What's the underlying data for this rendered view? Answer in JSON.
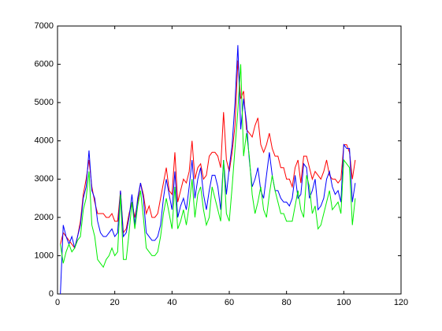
{
  "chart_data": {
    "type": "line",
    "x": [
      1,
      2,
      3,
      4,
      5,
      6,
      7,
      8,
      9,
      10,
      11,
      12,
      13,
      14,
      15,
      16,
      17,
      18,
      19,
      20,
      21,
      22,
      23,
      24,
      25,
      26,
      27,
      28,
      29,
      30,
      31,
      32,
      33,
      34,
      35,
      36,
      37,
      38,
      39,
      40,
      41,
      42,
      43,
      44,
      45,
      46,
      47,
      48,
      49,
      50,
      51,
      52,
      53,
      54,
      55,
      56,
      57,
      58,
      59,
      60,
      61,
      62,
      63,
      64,
      65,
      66,
      67,
      68,
      69,
      70,
      71,
      72,
      73,
      74,
      75,
      76,
      77,
      78,
      79,
      80,
      81,
      82,
      83,
      84,
      85,
      86,
      87,
      88,
      89,
      90,
      91,
      92,
      93,
      94,
      95,
      96,
      97,
      98,
      99,
      100,
      101,
      102,
      103,
      104
    ],
    "series": [
      {
        "color": "#ff0000",
        "values": [
          1300,
          1600,
          1500,
          1400,
          1300,
          1200,
          1500,
          1900,
          2600,
          3000,
          3500,
          2800,
          2400,
          2100,
          2100,
          2100,
          2000,
          2000,
          2100,
          1900,
          1900,
          2700,
          1600,
          1700,
          2100,
          2400,
          2000,
          2400,
          2900,
          2600,
          2100,
          2300,
          2000,
          2000,
          2100,
          2500,
          2900,
          3300,
          2700,
          2600,
          3700,
          2400,
          2700,
          3000,
          2900,
          3200,
          4000,
          3000,
          3300,
          3400,
          3000,
          3100,
          3600,
          3700,
          3700,
          3600,
          3300,
          4750,
          3500,
          3200,
          3700,
          4400,
          6100,
          5100,
          5300,
          4300,
          4200,
          4100,
          4400,
          4600,
          3900,
          3700,
          3900,
          4200,
          3800,
          3600,
          3600,
          3300,
          3300,
          3000,
          3000,
          2800,
          3300,
          3500,
          2900,
          3600,
          3600,
          3300,
          3000,
          3200,
          3100,
          3000,
          3200,
          3500,
          3100,
          3000,
          3000,
          2900,
          3000,
          3900,
          3900,
          3700,
          3000,
          3500
        ]
      },
      {
        "color": "#0000ff",
        "values": [
          0,
          1800,
          1500,
          1300,
          1500,
          1200,
          1500,
          1800,
          2500,
          2800,
          3750,
          2700,
          2500,
          1900,
          1600,
          1500,
          1500,
          1600,
          1700,
          1500,
          1600,
          2700,
          1500,
          1600,
          2000,
          2600,
          1800,
          2500,
          2900,
          2500,
          1600,
          1500,
          1400,
          1400,
          1500,
          1800,
          2500,
          3000,
          2600,
          2200,
          3200,
          2000,
          2300,
          2500,
          2200,
          2800,
          3500,
          2500,
          3000,
          3300,
          2600,
          2200,
          2700,
          3100,
          3100,
          2800,
          2200,
          3500,
          2600,
          3300,
          3900,
          5000,
          6500,
          4300,
          5100,
          4500,
          3500,
          2800,
          3000,
          3300,
          2700,
          2500,
          3100,
          3700,
          3100,
          2700,
          2700,
          2500,
          2400,
          2400,
          2300,
          2500,
          3100,
          2500,
          2600,
          3400,
          3300,
          2500,
          2700,
          3000,
          2200,
          2300,
          2500,
          3000,
          3200,
          2800,
          2600,
          2700,
          2400,
          3900,
          3800,
          3800,
          2400,
          2900
        ]
      },
      {
        "color": "#00ee00",
        "values": [
          1300,
          800,
          1100,
          1300,
          1100,
          1200,
          1400,
          1500,
          2200,
          2500,
          3200,
          1800,
          1500,
          900,
          800,
          700,
          900,
          1000,
          1200,
          1000,
          1100,
          2600,
          900,
          900,
          1600,
          2400,
          1700,
          2300,
          2700,
          2000,
          1200,
          1100,
          1000,
          1000,
          1100,
          1500,
          2100,
          2500,
          2100,
          1700,
          2800,
          1700,
          1900,
          2200,
          1800,
          2300,
          3000,
          2000,
          2600,
          2800,
          2200,
          1800,
          2000,
          2800,
          2500,
          2200,
          1900,
          3500,
          2100,
          1900,
          2800,
          3800,
          4800,
          6000,
          3600,
          4200,
          3600,
          2600,
          2100,
          2400,
          2800,
          2200,
          2000,
          2600,
          3100,
          2700,
          2400,
          2100,
          2100,
          1900,
          1900,
          1900,
          2300,
          2700,
          2200,
          2000,
          3100,
          2800,
          2100,
          2300,
          1700,
          1800,
          2100,
          2400,
          2700,
          2200,
          2300,
          2400,
          2100,
          3500,
          3400,
          3300,
          1800,
          2500
        ]
      }
    ],
    "xlim": [
      0,
      120
    ],
    "xticks": [
      0,
      20,
      40,
      60,
      80,
      100,
      120
    ],
    "ylim": [
      0,
      7000
    ],
    "yticks": [
      0,
      1000,
      2000,
      3000,
      4000,
      5000,
      6000,
      7000
    ],
    "grid": false
  }
}
